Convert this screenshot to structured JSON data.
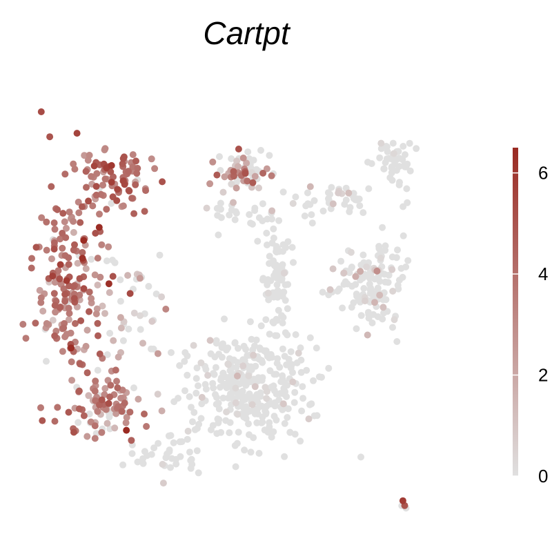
{
  "chart_data": {
    "type": "scatter",
    "title": "Cartpt",
    "xlabel": "",
    "ylabel": "",
    "grid": false,
    "legend": "right",
    "colorbar": {
      "min": 0,
      "max": 6.5,
      "ticks": [
        0,
        2,
        4,
        6
      ],
      "tick_labels": [
        "0",
        "2",
        "4",
        "6"
      ],
      "low_color": "#e0e0e0",
      "high_color": "#9a2a22"
    },
    "xlim": [
      0,
      100
    ],
    "ylim": [
      0,
      100
    ],
    "clusters": [
      {
        "name": "left-arc-outer",
        "cx": 11,
        "cy": 54,
        "spread": [
          5,
          16
        ],
        "count": 190,
        "expr_mean": 3.7,
        "expr_sd": 1.1,
        "zero_frac": 0.04
      },
      {
        "name": "left-arc-top",
        "cx": 20,
        "cy": 77,
        "spread": [
          5,
          4
        ],
        "count": 85,
        "expr_mean": 4.0,
        "expr_sd": 1.0,
        "zero_frac": 0.08
      },
      {
        "name": "left-arc-bottom",
        "cx": 19,
        "cy": 27,
        "spread": [
          5,
          5
        ],
        "count": 80,
        "expr_mean": 3.3,
        "expr_sd": 1.2,
        "zero_frac": 0.15
      },
      {
        "name": "left-arc-inner",
        "cx": 24,
        "cy": 48,
        "spread": [
          4,
          10
        ],
        "count": 45,
        "expr_mean": 1.6,
        "expr_sd": 1.3,
        "zero_frac": 0.55
      },
      {
        "name": "central-lower",
        "cx": 50,
        "cy": 32,
        "spread": [
          9,
          8
        ],
        "count": 330,
        "expr_mean": 0.4,
        "expr_sd": 0.7,
        "zero_frac": 0.92
      },
      {
        "name": "bottom-left-trail",
        "cx": 31,
        "cy": 17,
        "spread": [
          6,
          3
        ],
        "count": 35,
        "expr_mean": 0.4,
        "expr_sd": 0.7,
        "zero_frac": 0.9
      },
      {
        "name": "central-stem",
        "cx": 56,
        "cy": 56,
        "spread": [
          2,
          8
        ],
        "count": 75,
        "expr_mean": 0.3,
        "expr_sd": 0.6,
        "zero_frac": 0.96
      },
      {
        "name": "upper-cluster",
        "cx": 49,
        "cy": 79,
        "spread": [
          3.5,
          3
        ],
        "count": 60,
        "expr_mean": 3.2,
        "expr_sd": 1.3,
        "zero_frac": 0.45
      },
      {
        "name": "upper-spread",
        "cx": 47,
        "cy": 70,
        "spread": [
          8,
          4
        ],
        "count": 30,
        "expr_mean": 0.8,
        "expr_sd": 1.0,
        "zero_frac": 0.8
      },
      {
        "name": "right-cluster",
        "cx": 77,
        "cy": 54,
        "spread": [
          5,
          6
        ],
        "count": 130,
        "expr_mean": 0.6,
        "expr_sd": 0.9,
        "zero_frac": 0.85
      },
      {
        "name": "right-arm",
        "cx": 70,
        "cy": 73,
        "spread": [
          7,
          2.5
        ],
        "count": 40,
        "expr_mean": 0.6,
        "expr_sd": 0.9,
        "zero_frac": 0.85
      },
      {
        "name": "top-right-tip",
        "cx": 82,
        "cy": 82,
        "spread": [
          2.5,
          4
        ],
        "count": 45,
        "expr_mean": 0.2,
        "expr_sd": 0.4,
        "zero_frac": 0.97
      },
      {
        "name": "bottom-right-outlier",
        "cx": 84,
        "cy": 6,
        "spread": [
          0.6,
          0.6
        ],
        "count": 4,
        "expr_mean": 2.5,
        "expr_sd": 2.0,
        "zero_frac": 0.6
      }
    ]
  }
}
